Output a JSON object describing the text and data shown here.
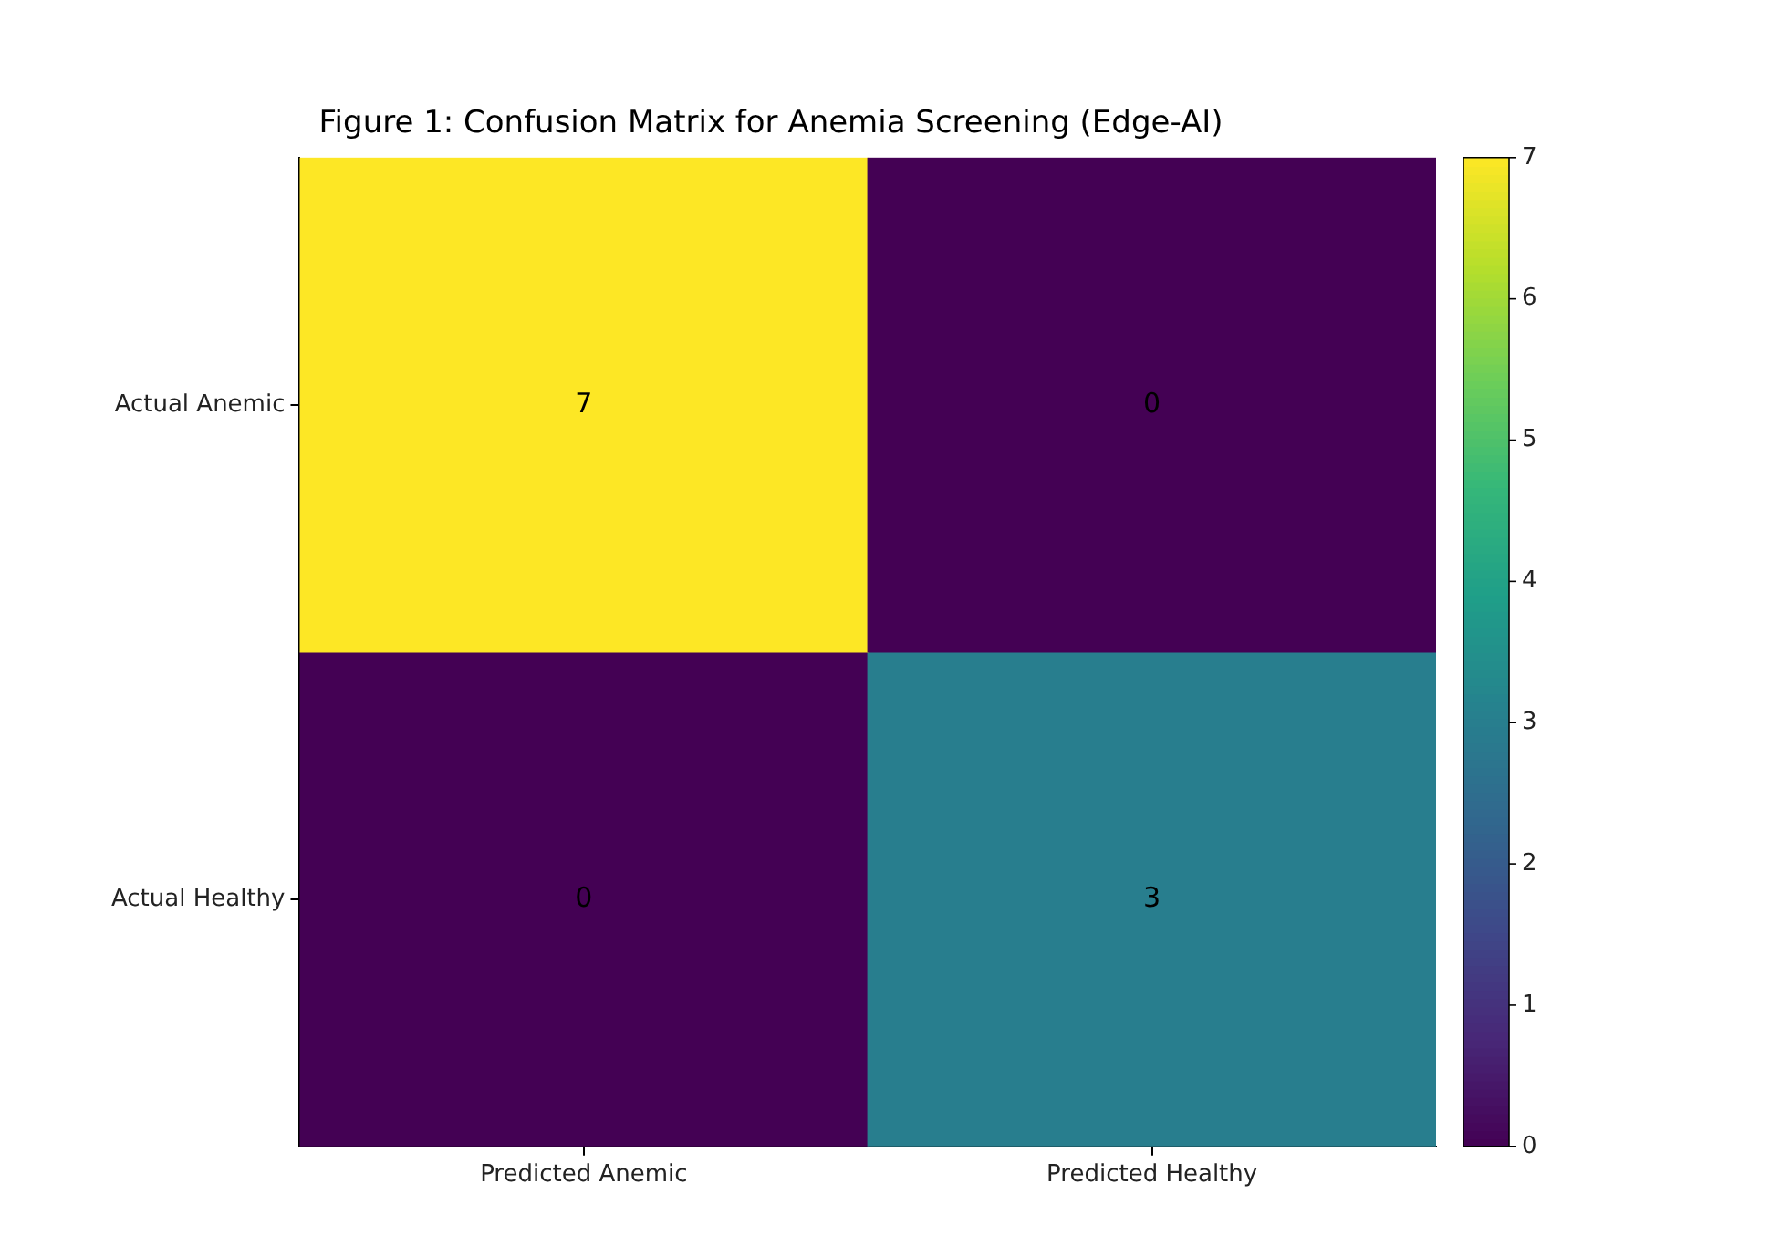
{
  "chart_data": {
    "type": "heatmap",
    "title": "Figure 1: Confusion Matrix for Anemia Screening (Edge-AI)",
    "categories": [
      "Predicted Anemic",
      "Predicted Healthy"
    ],
    "y_categories": [
      "Actual Anemic",
      "Actual Healthy"
    ],
    "cells": [
      [
        7,
        0
      ],
      [
        0,
        3
      ]
    ],
    "data_labels": true,
    "clim": [
      0,
      7
    ],
    "cticks": [
      0,
      1,
      2,
      3,
      4,
      5,
      6,
      7
    ]
  }
}
